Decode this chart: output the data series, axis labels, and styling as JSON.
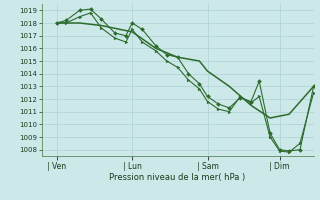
{
  "xlabel": "Pression niveau de la mer( hPa )",
  "bg_color": "#cce8e8",
  "grid_color": "#a8cccc",
  "line_color": "#2d6b2d",
  "ylim": [
    1007.5,
    1019.5
  ],
  "yticks": [
    1008,
    1009,
    1010,
    1011,
    1012,
    1013,
    1014,
    1015,
    1016,
    1017,
    1018,
    1019
  ],
  "xlim": [
    0.0,
    1.0
  ],
  "xtick_labels": [
    "| Ven",
    "| Lun",
    "| Sam",
    "| Dim"
  ],
  "xtick_positions": [
    0.055,
    0.333,
    0.61,
    0.875
  ],
  "series1_x": [
    0.055,
    0.09,
    0.14,
    0.18,
    0.22,
    0.27,
    0.31,
    0.333,
    0.37,
    0.42,
    0.46,
    0.5,
    0.54,
    0.58,
    0.61,
    0.65,
    0.69,
    0.73,
    0.77,
    0.8,
    0.84,
    0.875,
    0.91,
    0.95,
    1.0
  ],
  "series1_y": [
    1018.0,
    1018.2,
    1019.0,
    1019.1,
    1018.3,
    1017.2,
    1017.0,
    1018.0,
    1017.5,
    1016.2,
    1015.5,
    1015.3,
    1014.0,
    1013.2,
    1012.2,
    1011.6,
    1011.3,
    1012.1,
    1011.8,
    1013.4,
    1009.3,
    1008.0,
    1007.9,
    1008.0,
    1013.0
  ],
  "series2_x": [
    0.055,
    0.09,
    0.14,
    0.18,
    0.22,
    0.27,
    0.31,
    0.333,
    0.37,
    0.42,
    0.46,
    0.5,
    0.54,
    0.58,
    0.61,
    0.65,
    0.69,
    0.73,
    0.77,
    0.8,
    0.84,
    0.875,
    0.91,
    0.95,
    1.0
  ],
  "series2_y": [
    1018.0,
    1018.0,
    1018.5,
    1018.8,
    1017.6,
    1016.8,
    1016.5,
    1017.5,
    1016.5,
    1015.8,
    1015.0,
    1014.5,
    1013.5,
    1012.8,
    1011.8,
    1011.2,
    1011.0,
    1012.2,
    1011.7,
    1012.2,
    1009.0,
    1007.9,
    1007.8,
    1008.5,
    1012.5
  ],
  "series3_x": [
    0.055,
    0.14,
    0.22,
    0.333,
    0.42,
    0.5,
    0.58,
    0.61,
    0.69,
    0.77,
    0.84,
    0.91,
    1.0
  ],
  "series3_y": [
    1018.0,
    1018.0,
    1017.8,
    1017.3,
    1016.0,
    1015.3,
    1015.0,
    1014.2,
    1013.0,
    1011.5,
    1010.5,
    1010.8,
    1013.0
  ]
}
